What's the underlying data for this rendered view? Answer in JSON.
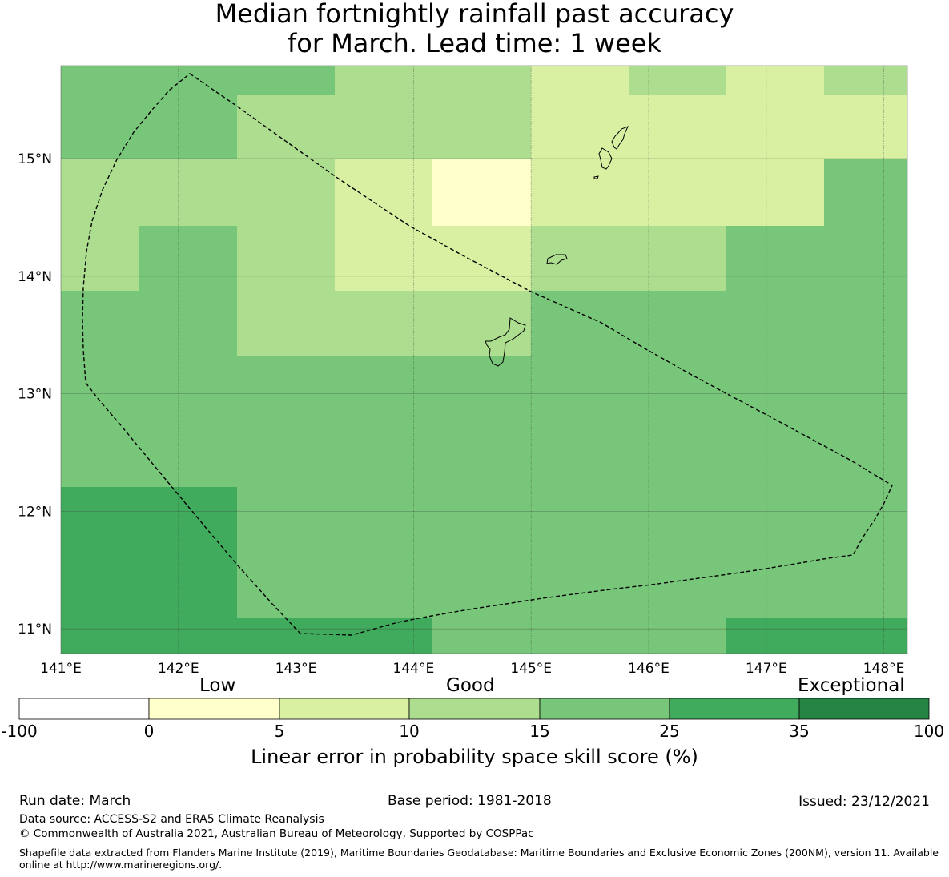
{
  "title": {
    "line1": "Median fortnightly rainfall past accuracy",
    "line2": "for March. Lead time: 1 week"
  },
  "map": {
    "lon_range": [
      141.0,
      148.2
    ],
    "lat_range": [
      10.8,
      15.8
    ],
    "lon_ticks": [
      "141°E",
      "142°E",
      "143°E",
      "144°E",
      "145°E",
      "146°E",
      "147°E",
      "148°E"
    ],
    "lat_ticks": [
      "15°N",
      "14°N",
      "13°N",
      "12°N",
      "11°N"
    ],
    "grid_cell_size_deg": 0.833,
    "grid_cell_category_index_note": "rows listed north to south; 0:-100-0,1:0-5,2:5-10,3:10-15,4:15-25,5:25-35,6:35-100"
  },
  "colorbar": {
    "categories": [
      "Low",
      "Good",
      "Exceptional"
    ],
    "ticks": [
      "-100",
      "0",
      "5",
      "10",
      "15",
      "25",
      "35",
      "100"
    ],
    "colors": [
      "#ffffff",
      "#ffffcc",
      "#d9f0a3",
      "#addd8e",
      "#78c679",
      "#41ab5d",
      "#238443"
    ],
    "label": "Linear error in probability space skill score (%)"
  },
  "footer": {
    "run_date": "Run date: March",
    "base_period": "Base period: 1981-2018",
    "issued": "Issued: 23/12/2021",
    "data_source": "Data source: ACCESS-S2 and ERA5 Climate Reanalysis",
    "copyright": "© Commonwealth of Australia 2021, Australian Bureau of Meteorology, Supported by COSPPac",
    "shapefile": "Shapefile data extracted from Flanders Marine Institute (2019), Maritime Boundaries Geodatabase: Maritime Boundaries and Exclusive Economic Zones (200NM), version 11. Available online at http://www.marineregions.org/."
  }
}
